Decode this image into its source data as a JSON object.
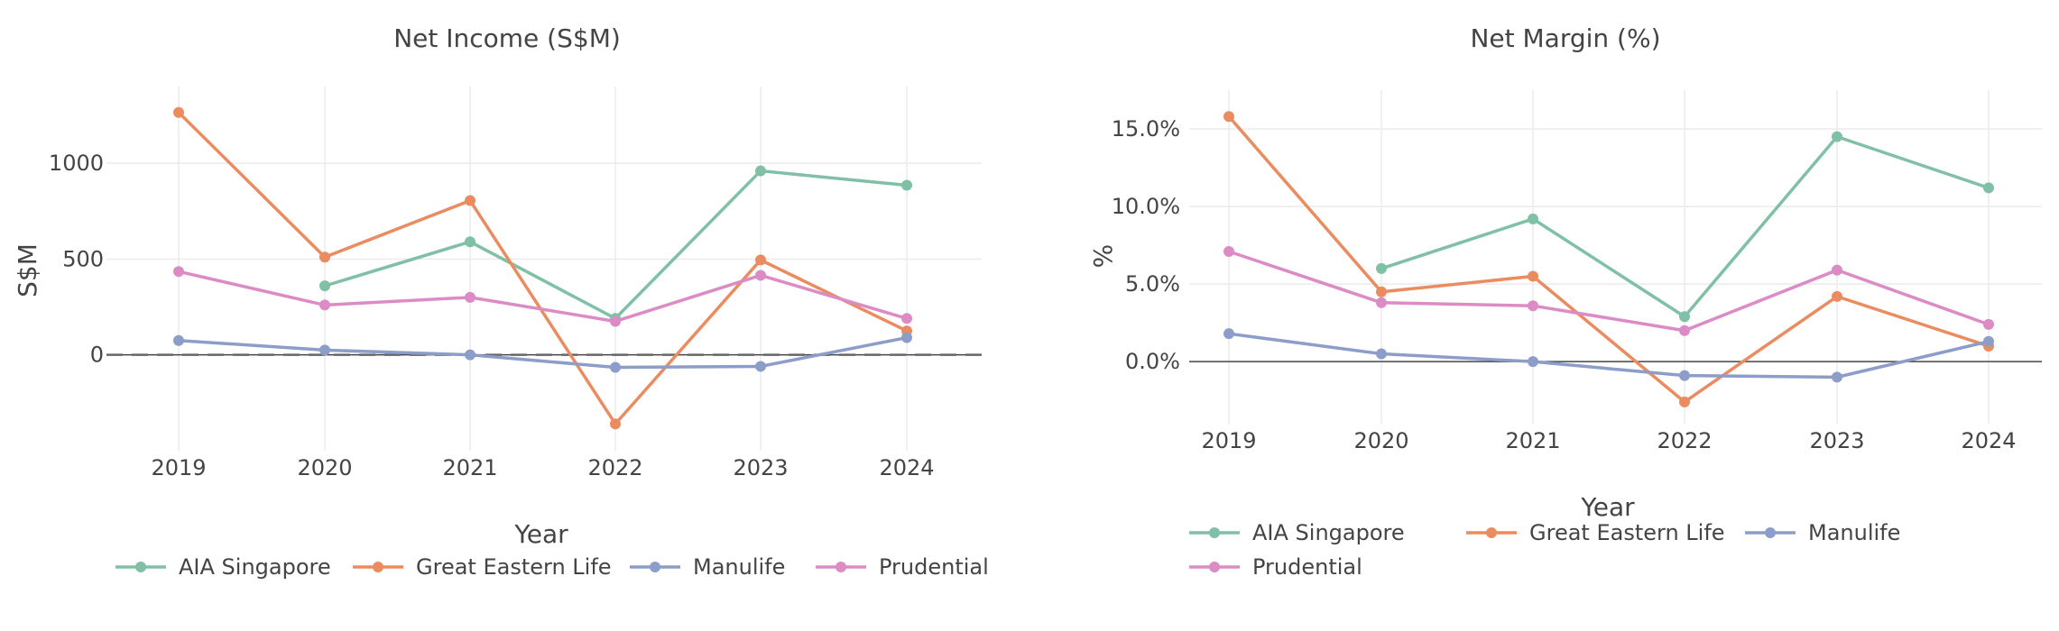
{
  "colors": {
    "AIA Singapore": "#7fc0a7",
    "Great Eastern Life": "#ea8c60",
    "Manulife": "#8d9dc9",
    "Prudential": "#dc8bc5"
  },
  "legend_names": [
    "AIA Singapore",
    "Great Eastern Life",
    "Manulife",
    "Prudential"
  ],
  "chart_data": [
    {
      "type": "line",
      "title": "Net Income (S$M)",
      "xlabel": "Year",
      "ylabel": "S$M",
      "x": [
        2019,
        2020,
        2021,
        2022,
        2023,
        2024
      ],
      "x_tick_labels": [
        "2019",
        "2020",
        "2021",
        "2022",
        "2023",
        "2024"
      ],
      "ylim": [
        -500,
        1400
      ],
      "y_ticks": [
        0,
        500,
        1000
      ],
      "y_tick_labels": [
        "0",
        "500",
        "1000"
      ],
      "grid": true,
      "reference_line": 0,
      "legend_placement": "bottom",
      "series": [
        {
          "name": "AIA Singapore",
          "values": [
            null,
            360,
            590,
            190,
            960,
            885
          ]
        },
        {
          "name": "Great Eastern Life",
          "values": [
            1265,
            510,
            805,
            -360,
            495,
            125
          ]
        },
        {
          "name": "Manulife",
          "values": [
            75,
            25,
            0,
            -65,
            -60,
            90
          ]
        },
        {
          "name": "Prudential",
          "values": [
            435,
            260,
            300,
            175,
            415,
            190
          ]
        }
      ]
    },
    {
      "type": "line",
      "title": "Net Margin (%)",
      "xlabel": "Year",
      "ylabel": "%",
      "x": [
        2019,
        2020,
        2021,
        2022,
        2023,
        2024
      ],
      "x_tick_labels": [
        "2019",
        "2020",
        "2021",
        "2022",
        "2023",
        "2024"
      ],
      "ylim": [
        -4,
        17.5
      ],
      "y_ticks": [
        0,
        5,
        10,
        15
      ],
      "y_tick_labels": [
        "0.0%",
        "5.0%",
        "10.0%",
        "15.0%"
      ],
      "grid": true,
      "legend_placement": "bottom",
      "series": [
        {
          "name": "AIA Singapore",
          "values": [
            null,
            6.0,
            9.2,
            2.9,
            14.5,
            11.2
          ]
        },
        {
          "name": "Great Eastern Life",
          "values": [
            15.8,
            4.5,
            5.5,
            -2.6,
            4.2,
            1.0
          ]
        },
        {
          "name": "Manulife",
          "values": [
            1.8,
            0.5,
            0.0,
            -0.9,
            -1.0,
            1.3
          ]
        },
        {
          "name": "Prudential",
          "values": [
            7.1,
            3.8,
            3.6,
            2.0,
            5.9,
            2.4
          ]
        }
      ]
    }
  ]
}
